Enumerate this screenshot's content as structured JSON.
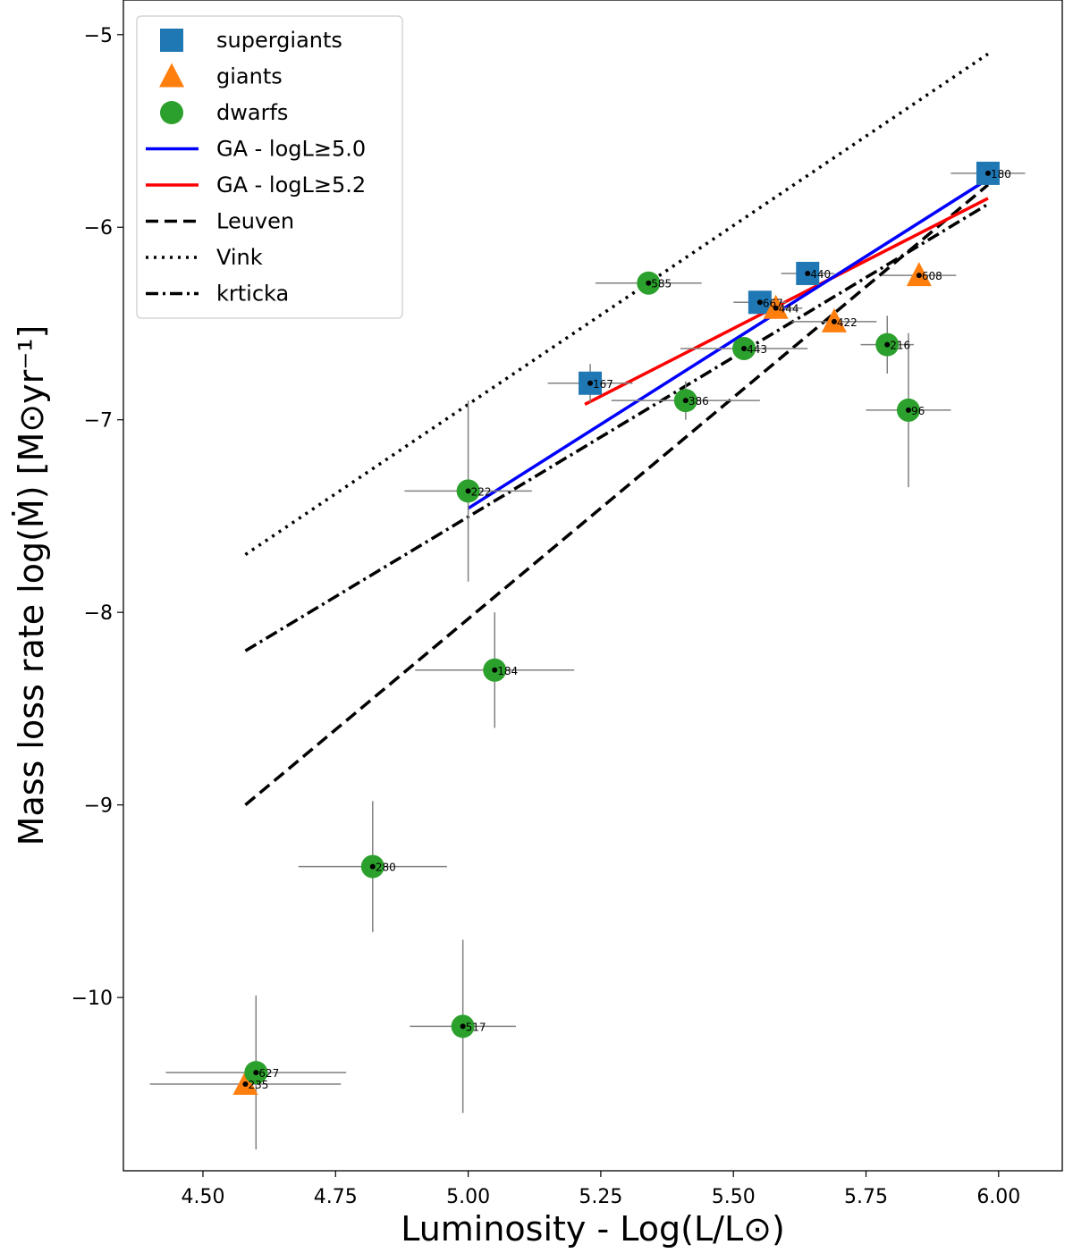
{
  "chart_data": {
    "type": "scatter",
    "xlabel": "Luminosity - Log(L/L⊙)",
    "ylabel": "Mass loss rate log(Ṁ) [M⊙yr⁻¹]",
    "xlim": [
      4.35,
      6.12
    ],
    "ylim": [
      -10.9,
      -4.82
    ],
    "xticks": [
      4.5,
      4.75,
      5.0,
      5.25,
      5.5,
      5.75,
      6.0
    ],
    "xtick_labels": [
      "4.50",
      "4.75",
      "5.00",
      "5.25",
      "5.50",
      "5.75",
      "6.00"
    ],
    "yticks": [
      -10,
      -9,
      -8,
      -7,
      -6,
      -5
    ],
    "ytick_labels": [
      "−10",
      "−9",
      "−8",
      "−7",
      "−6",
      "−5"
    ],
    "grid": false,
    "legend_position": "top-left",
    "legend": [
      {
        "label": "supergiants",
        "kind": "marker",
        "marker": "square",
        "color": "#1f77b4"
      },
      {
        "label": "giants",
        "kind": "marker",
        "marker": "triangle",
        "color": "#ff7f0e"
      },
      {
        "label": "dwarfs",
        "kind": "marker",
        "marker": "circle",
        "color": "#2ca02c"
      },
      {
        "label": "GA - logL≥5.0",
        "kind": "line",
        "color": "#0000ff",
        "dash": "solid"
      },
      {
        "label": "GA - logL≥5.2",
        "kind": "line",
        "color": "#ff0000",
        "dash": "solid"
      },
      {
        "label": "Leuven",
        "kind": "line",
        "color": "#000000",
        "dash": "dashed"
      },
      {
        "label": "Vink",
        "kind": "line",
        "color": "#000000",
        "dash": "dotted"
      },
      {
        "label": "krticka",
        "kind": "line",
        "color": "#000000",
        "dash": "dashdot"
      }
    ],
    "fit_lines": [
      {
        "name": "Vink",
        "color": "#000000",
        "dash": "dotted",
        "x": [
          4.58,
          5.98
        ],
        "y": [
          -7.7,
          -5.1
        ]
      },
      {
        "name": "krticka",
        "color": "#000000",
        "dash": "dashdot",
        "x": [
          4.58,
          5.98
        ],
        "y": [
          -8.2,
          -5.88
        ]
      },
      {
        "name": "Leuven",
        "color": "#000000",
        "dash": "dashed",
        "x": [
          4.58,
          5.98
        ],
        "y": [
          -9.0,
          -5.78
        ]
      },
      {
        "name": "GA - logL≥5.2",
        "color": "#ff0000",
        "dash": "solid",
        "x": [
          5.22,
          5.98
        ],
        "y": [
          -6.92,
          -5.85
        ]
      },
      {
        "name": "GA - logL≥5.0",
        "color": "#0000ff",
        "dash": "solid",
        "x": [
          5.0,
          5.98
        ],
        "y": [
          -7.46,
          -5.75
        ]
      }
    ],
    "series": [
      {
        "name": "supergiants",
        "marker": "square",
        "color": "#1f77b4",
        "points": [
          {
            "id": "180",
            "x": 5.98,
            "y": -5.72,
            "xerr": 0.07,
            "yerr": 0.0
          },
          {
            "id": "440",
            "x": 5.64,
            "y": -6.24,
            "xerr": 0.05,
            "yerr": 0.0
          },
          {
            "id": "667",
            "x": 5.55,
            "y": -6.39,
            "xerr": 0.05,
            "yerr": 0.0
          },
          {
            "id": "167",
            "x": 5.23,
            "y": -6.81,
            "xerr": 0.08,
            "yerr": 0.1
          }
        ]
      },
      {
        "name": "giants",
        "marker": "triangle",
        "color": "#ff7f0e",
        "points": [
          {
            "id": "608",
            "x": 5.85,
            "y": -6.25,
            "xerr": 0.07,
            "yerr": 0.0
          },
          {
            "id": "444",
            "x": 5.58,
            "y": -6.42,
            "xerr": 0.05,
            "yerr": 0.0
          },
          {
            "id": "422",
            "x": 5.69,
            "y": -6.49,
            "xerr": 0.08,
            "yerr": 0.0
          },
          {
            "id": "235",
            "x": 4.58,
            "y": -10.45,
            "xerr": 0.18,
            "yerr": 0.0
          }
        ]
      },
      {
        "name": "dwarfs",
        "marker": "circle",
        "color": "#2ca02c",
        "points": [
          {
            "id": "585",
            "x": 5.34,
            "y": -6.29,
            "xerr": 0.1,
            "yerr": 0.0
          },
          {
            "id": "443",
            "x": 5.52,
            "y": -6.63,
            "xerr": 0.12,
            "yerr": 0.0
          },
          {
            "id": "216",
            "x": 5.79,
            "y": -6.61,
            "xerr": 0.05,
            "yerr": 0.15
          },
          {
            "id": "386",
            "x": 5.41,
            "y": -6.9,
            "xerr": 0.14,
            "yerr": 0.1
          },
          {
            "id": "96",
            "x": 5.83,
            "y": -6.95,
            "xerr": 0.08,
            "yerr": 0.4
          },
          {
            "id": "222",
            "x": 5.0,
            "y": -7.37,
            "xerr": 0.12,
            "yerr": 0.47
          },
          {
            "id": "184",
            "x": 5.05,
            "y": -8.3,
            "xerr": 0.15,
            "yerr": 0.3
          },
          {
            "id": "280",
            "x": 4.82,
            "y": -9.32,
            "xerr": 0.14,
            "yerr": 0.34
          },
          {
            "id": "517",
            "x": 4.99,
            "y": -10.15,
            "xerr": 0.1,
            "yerr": 0.45
          },
          {
            "id": "627",
            "x": 4.6,
            "y": -10.39,
            "xerr": 0.17,
            "yerr": 0.4
          }
        ]
      }
    ]
  }
}
